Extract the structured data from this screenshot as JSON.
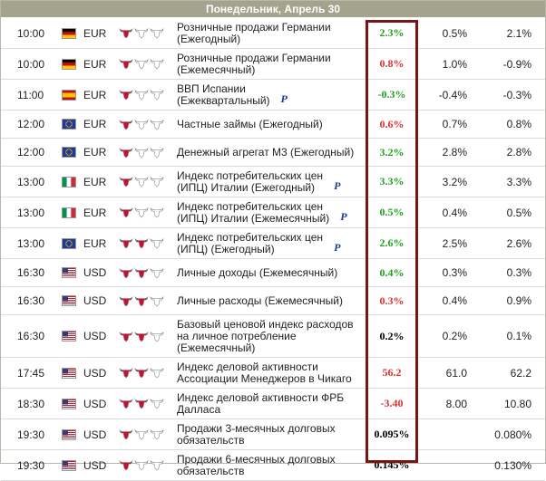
{
  "header": {
    "title": "Понедельник, Апрель 30"
  },
  "colors": {
    "up": "#22a022",
    "down": "#e03030",
    "neutral": "#000000",
    "bull_active": "#c8102e"
  },
  "rows": [
    {
      "time": "10:00",
      "flag": "de",
      "currency": "EUR",
      "importance": 1,
      "event": "Розничные продажи Германии\n(Ежегодный)",
      "actual": "2.3%",
      "actual_color": "up",
      "forecast": "0.5%",
      "previous": "2.1%"
    },
    {
      "time": "10:00",
      "flag": "de",
      "currency": "EUR",
      "importance": 1,
      "event": "Розничные продажи Германии\n(Ежемесячный)",
      "actual": "0.8%",
      "actual_color": "down",
      "forecast": "1.0%",
      "previous": "-0.9%"
    },
    {
      "time": "11:00",
      "flag": "es",
      "currency": "EUR",
      "importance": 1,
      "event": "ВВП Испании\n(Ежеквартальный)",
      "mark": "P",
      "actual": "-0.3%",
      "actual_color": "up",
      "forecast": "-0.4%",
      "previous": "-0.3%"
    },
    {
      "time": "12:00",
      "flag": "eu",
      "currency": "EUR",
      "importance": 1,
      "event": "Частные займы (Ежегодный)",
      "actual": "0.6%",
      "actual_color": "down",
      "forecast": "0.7%",
      "previous": "0.8%"
    },
    {
      "time": "12:00",
      "flag": "eu",
      "currency": "EUR",
      "importance": 1,
      "event": "Денежный агрегат М3 (Ежегодный)",
      "actual": "3.2%",
      "actual_color": "up",
      "forecast": "2.8%",
      "previous": "2.8%"
    },
    {
      "time": "13:00",
      "flag": "it",
      "currency": "EUR",
      "importance": 1,
      "event": "Индекс потребительских цен\n(ИПЦ) Италии (Ежегодный)",
      "mark": "P",
      "actual": "3.3%",
      "actual_color": "up",
      "forecast": "3.2%",
      "previous": "3.3%"
    },
    {
      "time": "13:00",
      "flag": "it",
      "currency": "EUR",
      "importance": 1,
      "event": "Индекс потребительских цен\n(ИПЦ) Италии (Ежемесячный)",
      "mark": "P",
      "actual": "0.5%",
      "actual_color": "up",
      "forecast": "0.4%",
      "previous": "0.5%"
    },
    {
      "time": "13:00",
      "flag": "eu",
      "currency": "EUR",
      "importance": 2,
      "event": "Индекс потребительских цен\n(ИПЦ) (Ежегодный)",
      "mark": "P",
      "actual": "2.6%",
      "actual_color": "up",
      "forecast": "2.5%",
      "previous": "2.6%"
    },
    {
      "time": "16:30",
      "flag": "us",
      "currency": "USD",
      "importance": 2,
      "event": "Личные доходы (Ежемесячный)",
      "actual": "0.4%",
      "actual_color": "up",
      "forecast": "0.3%",
      "previous": "0.3%"
    },
    {
      "time": "16:30",
      "flag": "us",
      "currency": "USD",
      "importance": 2,
      "event": "Личные расходы (Ежемесячный)",
      "actual": "0.3%",
      "actual_color": "down",
      "forecast": "0.4%",
      "previous": "0.9%"
    },
    {
      "time": "16:30",
      "flag": "us",
      "currency": "USD",
      "importance": 2,
      "event": "Базовый ценовой индекс расходов\nна личное потребление\n(Ежемесячный)",
      "actual": "0.2%",
      "actual_color": "neutral",
      "forecast": "0.2%",
      "previous": "0.1%"
    },
    {
      "time": "17:45",
      "flag": "us",
      "currency": "USD",
      "importance": 2,
      "event": "Индекс деловой активности\nАссоциации Менеджеров в Чикаго",
      "actual": "56.2",
      "actual_color": "down",
      "forecast": "61.0",
      "previous": "62.2"
    },
    {
      "time": "18:30",
      "flag": "us",
      "currency": "USD",
      "importance": 2,
      "event": "Индекс деловой активности ФРБ\nДалласа",
      "actual": "-3.40",
      "actual_color": "down",
      "forecast": "8.00",
      "previous": "10.80"
    },
    {
      "time": "19:30",
      "flag": "us",
      "currency": "USD",
      "importance": 1,
      "event": "Продажи 3-месячных долговых\nобязательств",
      "actual": "0.095%",
      "actual_color": "neutral",
      "forecast": null,
      "previous": "0.080%"
    },
    {
      "time": "19:30",
      "flag": "us",
      "currency": "USD",
      "importance": 1,
      "event": "Продажи 6-месячных долговых\nобязательств",
      "actual": "0.145%",
      "actual_color": "neutral",
      "forecast": null,
      "previous": "0.130%"
    }
  ]
}
